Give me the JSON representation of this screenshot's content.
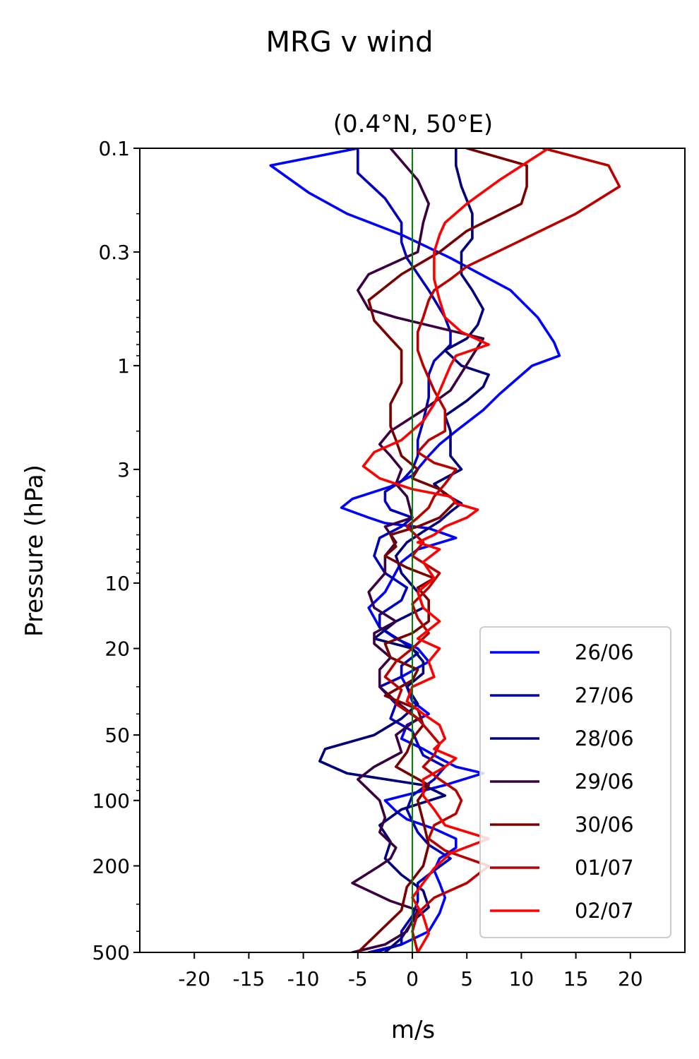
{
  "figure": {
    "suptitle": "MRG v wind"
  },
  "chart_data": {
    "type": "line",
    "title": "(0.4°N, 50°E)",
    "xlabel": "m/s",
    "ylabel": "Pressure (hPa)",
    "xlim": [
      -25,
      25
    ],
    "ylim": [
      500,
      0.1
    ],
    "yscale": "log",
    "xticks": [
      -20,
      -15,
      -10,
      -5,
      0,
      5,
      10,
      15,
      20
    ],
    "xtick_labels": [
      "-20",
      "-15",
      "-10",
      "-5",
      "0",
      "5",
      "10",
      "15",
      "20"
    ],
    "yticks": [
      0.1,
      0.3,
      1,
      3,
      10,
      20,
      50,
      100,
      200,
      500
    ],
    "ytick_labels": [
      "0.1",
      "0.3",
      "1",
      "3",
      "10",
      "20",
      "50",
      "100",
      "200",
      "500"
    ],
    "zero_line": {
      "x": 0,
      "color": "#008000"
    },
    "legend_position": "lower-right",
    "series": [
      {
        "name": "26/06",
        "color": "#0000ff",
        "x": [
          -5,
          -13,
          -9.5,
          -6,
          -1,
          3.5,
          9,
          11.5,
          13,
          13.5,
          11,
          8,
          6.5,
          4,
          2.5,
          1.5,
          0,
          -2,
          -5.5,
          -6.5,
          -4,
          -2.5,
          1.5,
          4,
          0.5,
          -1,
          -2.5,
          -4,
          -3,
          -1.5,
          0.5,
          1.5,
          -1,
          -0.5,
          0,
          1.5,
          -0.5,
          -1,
          1,
          2.5,
          4,
          6.5,
          3,
          -2.5,
          -1.5,
          -0.5,
          2,
          4,
          4,
          2.5,
          2,
          2.5,
          3,
          2.5,
          1.5,
          -1,
          -4
        ],
        "y": [
          0.1,
          0.12,
          0.16,
          0.2,
          0.25,
          0.32,
          0.45,
          0.6,
          0.78,
          0.9,
          1.0,
          1.35,
          1.6,
          2.0,
          2.3,
          2.6,
          3.2,
          3.6,
          4.1,
          4.5,
          5.0,
          5.3,
          5.6,
          6.2,
          7.0,
          8.0,
          11,
          13,
          16,
          18,
          20,
          23,
          27,
          30,
          35,
          40,
          45,
          52,
          58,
          64,
          70,
          75,
          85,
          100,
          112,
          122,
          135,
          150,
          165,
          185,
          210,
          240,
          280,
          330,
          400,
          460,
          500
        ]
      },
      {
        "name": "27/06",
        "color": "#0000bb",
        "x": [
          -5,
          -5,
          -2.5,
          -1,
          -1,
          -0.5,
          1.5,
          3,
          3.5,
          3.5,
          3,
          2,
          1.5,
          1.5,
          1,
          0.5,
          0.5,
          0,
          -1,
          -2.5,
          -2.5,
          -2,
          0,
          -1,
          -3,
          -3.5,
          -2.5,
          -0.5,
          -1,
          -3,
          -3,
          -1,
          0.5,
          -1,
          -1,
          -3,
          -1.5,
          -2,
          0,
          0.5,
          1,
          3,
          2,
          0,
          -0.5,
          0,
          0.5,
          1.5,
          3.5,
          2,
          0.5,
          0.5,
          0,
          -1,
          -1,
          -3.5
        ],
        "y": [
          0.1,
          0.13,
          0.17,
          0.22,
          0.27,
          0.32,
          0.45,
          0.6,
          0.7,
          0.8,
          0.85,
          0.95,
          1.1,
          1.4,
          1.8,
          2.2,
          2.6,
          3.0,
          3.4,
          3.8,
          4.2,
          4.6,
          5.0,
          5.5,
          6.2,
          7.5,
          9.0,
          10.5,
          12,
          14,
          16,
          18.5,
          21,
          24,
          27,
          30,
          36,
          42,
          48,
          55,
          62,
          70,
          80,
          95,
          110,
          125,
          140,
          160,
          185,
          210,
          240,
          290,
          340,
          400,
          460,
          500
        ]
      },
      {
        "name": "28/06",
        "color": "#00007a",
        "x": [
          4,
          4,
          4.5,
          5.5,
          5.5,
          4.5,
          4.5,
          5.5,
          6.5,
          6,
          5,
          3,
          4.5,
          7,
          6.5,
          5,
          3,
          3.5,
          3.5,
          4.5,
          2,
          3,
          4.5,
          3.5,
          2.5,
          1,
          -0.5,
          -1.5,
          -1,
          0.5,
          1,
          -1.5,
          -3.5,
          0,
          1,
          1,
          -0.5,
          0.5,
          -1,
          -3.5,
          -8,
          -8.5,
          -6,
          1,
          3,
          -1,
          -3,
          -2,
          -2.5,
          -1,
          1,
          1.5,
          0,
          -1,
          -2.5
        ],
        "y": [
          0.1,
          0.12,
          0.15,
          0.2,
          0.26,
          0.3,
          0.38,
          0.45,
          0.55,
          0.65,
          0.75,
          0.85,
          1.0,
          1.1,
          1.25,
          1.45,
          1.7,
          2.0,
          2.6,
          3.0,
          3.5,
          3.9,
          4.3,
          4.7,
          5.2,
          5.8,
          6.5,
          7.5,
          9.0,
          11,
          13,
          15,
          18,
          20,
          23,
          26,
          30,
          36,
          42,
          50,
          58,
          66,
          75,
          85,
          95,
          110,
          130,
          155,
          185,
          220,
          260,
          310,
          360,
          430,
          500
        ]
      },
      {
        "name": "29/06",
        "color": "#3a0040",
        "x": [
          -2,
          0.5,
          1.5,
          1,
          0.5,
          -4,
          -5,
          -4,
          -1.5,
          6.5,
          3.5,
          1,
          -2,
          -3,
          -2,
          -1,
          -1.5,
          -0.5,
          0,
          -2.5,
          -1.5,
          -2.5,
          -2.5,
          -4,
          -3.5,
          -1.5,
          -3.5,
          -3.5,
          -2,
          -3,
          -3,
          -1.5,
          0.5,
          -1.5,
          -1,
          -3.5,
          -5,
          -3,
          -2.5,
          -3,
          -1.5,
          -2,
          -3,
          -5.5,
          -2,
          0.5,
          -0.5,
          -2.5,
          -5.5
        ],
        "y": [
          0.1,
          0.14,
          0.18,
          0.22,
          0.3,
          0.38,
          0.45,
          0.55,
          0.6,
          0.75,
          1.3,
          1.6,
          2.0,
          2.3,
          2.6,
          3.0,
          3.5,
          4.0,
          5.0,
          5.5,
          6.5,
          7.5,
          9.0,
          11,
          13,
          15,
          17,
          19,
          22,
          25,
          30,
          35,
          42,
          50,
          60,
          70,
          80,
          100,
          120,
          140,
          165,
          185,
          200,
          240,
          290,
          320,
          400,
          460,
          500
        ]
      },
      {
        "name": "30/06",
        "color": "#7a0000",
        "x": [
          5,
          10.5,
          10.5,
          10,
          5,
          2.5,
          -1,
          -4,
          -3.5,
          -2,
          -1,
          -1,
          -2,
          -2,
          -1.5,
          -1,
          0.5,
          0,
          2.5,
          4,
          2.5,
          0.5,
          -2,
          -1.5,
          -2.5,
          -0.5,
          2,
          0.5,
          1.5,
          1.5,
          0,
          -2.5,
          -2,
          0.5,
          0,
          -2.5,
          0.5,
          1,
          0,
          -0.5,
          -1.5,
          1.5,
          0.5,
          1,
          1.5,
          1,
          -0.5,
          -1,
          -3,
          -5
        ],
        "y": [
          0.1,
          0.12,
          0.15,
          0.18,
          0.24,
          0.3,
          0.38,
          0.5,
          0.62,
          0.75,
          0.85,
          1.2,
          1.5,
          1.9,
          2.2,
          2.6,
          3.0,
          3.3,
          3.7,
          4.2,
          5.0,
          5.5,
          6.0,
          6.8,
          7.5,
          8.5,
          9.5,
          10.5,
          12,
          15,
          17,
          19,
          22,
          25,
          28,
          33,
          38,
          45,
          52,
          60,
          70,
          85,
          100,
          125,
          160,
          200,
          250,
          320,
          400,
          500
        ]
      },
      {
        "name": "01/07",
        "color": "#bb0000",
        "x": [
          12,
          18,
          19,
          15,
          9,
          5,
          3.5,
          2,
          1.5,
          1,
          0.5,
          0.5,
          1,
          2,
          3,
          3,
          1.5,
          0.5,
          2,
          4,
          3,
          2,
          1.5,
          0.5,
          -0.5,
          1,
          0,
          2.5,
          1.5,
          0,
          0.5,
          1.5,
          0,
          -1.5,
          -2.5,
          -1,
          -1.5,
          0.5,
          1.5,
          2.5,
          2,
          1,
          2.5,
          4,
          4.5,
          4,
          2,
          1.5,
          3,
          7,
          5,
          2,
          0.5,
          0,
          0.5
        ],
        "y": [
          0.1,
          0.12,
          0.15,
          0.2,
          0.28,
          0.35,
          0.4,
          0.45,
          0.5,
          0.6,
          0.7,
          0.85,
          1.0,
          1.3,
          1.6,
          2.0,
          2.2,
          2.5,
          2.8,
          3.0,
          3.5,
          4.0,
          4.5,
          5.0,
          5.5,
          6.5,
          7.5,
          9.0,
          10.5,
          12.5,
          14.5,
          17,
          20,
          23,
          27,
          31,
          36,
          42,
          48,
          55,
          62,
          70,
          80,
          90,
          100,
          115,
          130,
          150,
          170,
          200,
          240,
          280,
          330,
          400,
          500
        ]
      },
      {
        "name": "02/07",
        "color": "#ff0000",
        "x": [
          12.5,
          8,
          5,
          3,
          2.5,
          2,
          2,
          2.5,
          3,
          4.5,
          7,
          4,
          3.5,
          2,
          1,
          -1,
          -3.5,
          -4.5,
          -3,
          0,
          3.5,
          4,
          6,
          5,
          3,
          2,
          0.5,
          2.5,
          1,
          2,
          0.5,
          1,
          2.5,
          0.5,
          2.5,
          1.5,
          2,
          0,
          -0.5,
          1,
          2.5,
          3,
          2,
          4,
          3,
          1,
          1,
          2,
          3,
          7,
          3.5,
          2,
          1,
          0,
          1,
          1.5,
          0.5
        ],
        "y": [
          0.1,
          0.14,
          0.18,
          0.22,
          0.25,
          0.3,
          0.4,
          0.5,
          0.6,
          0.7,
          0.8,
          0.9,
          1.0,
          1.5,
          1.8,
          2.2,
          2.5,
          2.9,
          3.3,
          3.7,
          4.0,
          4.3,
          4.6,
          5.0,
          5.5,
          6.0,
          6.5,
          7.0,
          8.0,
          9.5,
          11,
          13,
          15,
          18,
          20,
          23,
          27,
          30,
          35,
          40,
          45,
          52,
          58,
          64,
          70,
          80,
          95,
          110,
          130,
          150,
          175,
          205,
          240,
          280,
          340,
          410,
          500
        ]
      }
    ]
  }
}
